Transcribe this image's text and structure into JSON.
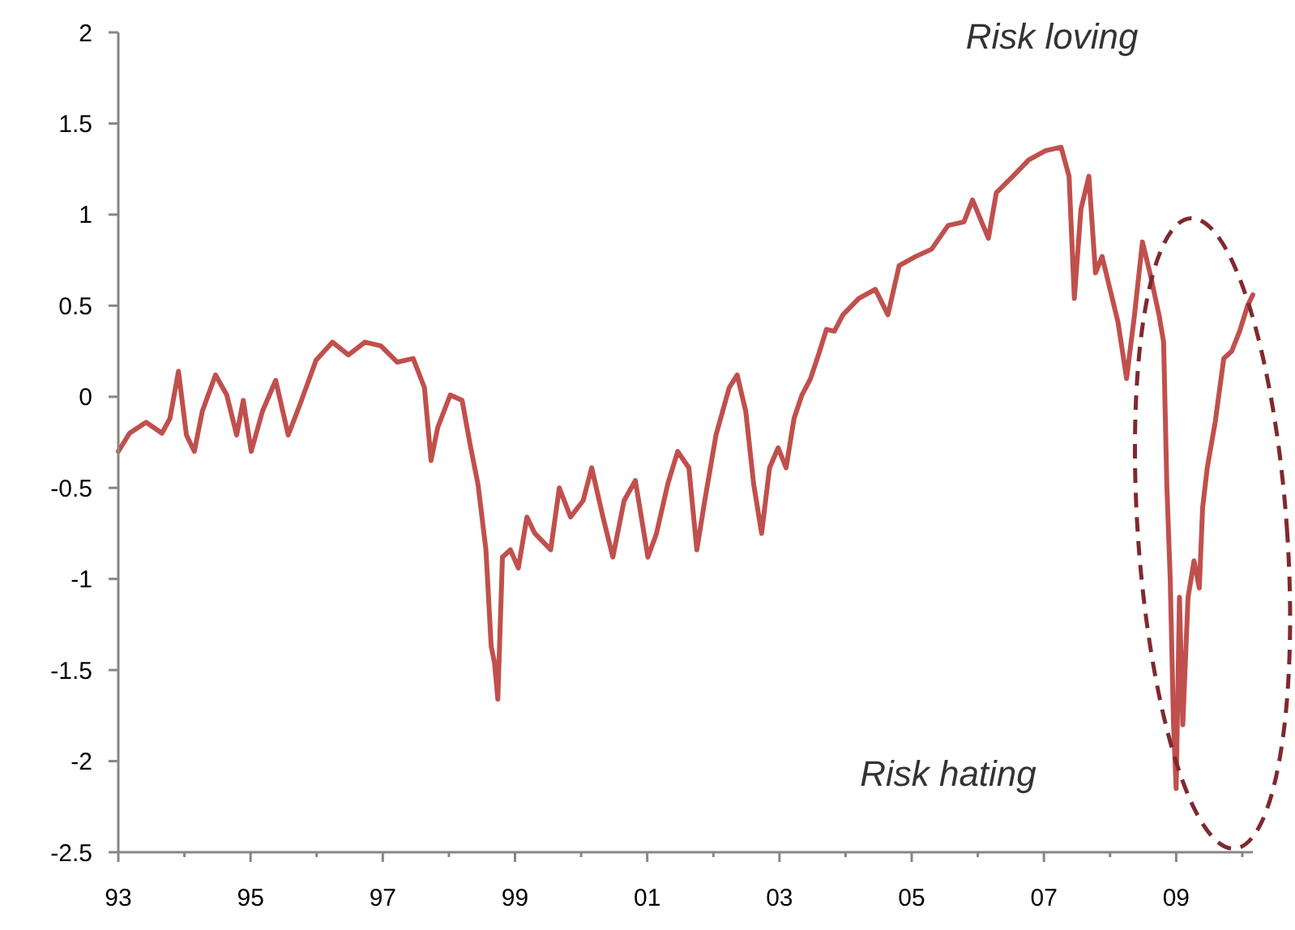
{
  "chart_data": {
    "type": "line",
    "x": [
      1993,
      1993.17,
      1993.42,
      1993.66,
      1993.78,
      1993.91,
      1994.03,
      1994.15,
      1994.27,
      1994.47,
      1994.64,
      1994.79,
      1994.89,
      1995.01,
      1995.18,
      1995.38,
      1995.57,
      1995.75,
      1995.99,
      1996.24,
      1996.48,
      1996.73,
      1996.97,
      1997.22,
      1997.46,
      1997.63,
      1997.73,
      1997.83,
      1998.02,
      1998.2,
      1998.32,
      1998.44,
      1998.56,
      1998.64,
      1998.69,
      1998.74,
      1998.81,
      1998.93,
      1999.05,
      1999.18,
      1999.3,
      1999.54,
      1999.67,
      1999.84,
      2000.03,
      2000.16,
      2000.33,
      2000.48,
      2000.65,
      2000.82,
      2001.01,
      2001.14,
      2001.31,
      2001.46,
      2001.63,
      2001.75,
      2001.87,
      2002.04,
      2002.24,
      2002.36,
      2002.49,
      2002.61,
      2002.73,
      2002.85,
      2002.98,
      2003.1,
      2003.22,
      2003.34,
      2003.47,
      2003.59,
      2003.71,
      2003.83,
      2003.96,
      2004.2,
      2004.45,
      2004.64,
      2004.81,
      2005.06,
      2005.3,
      2005.55,
      2005.79,
      2005.92,
      2006.16,
      2006.28,
      2006.53,
      2006.77,
      2007.02,
      2007.26,
      2007.38,
      2007.46,
      2007.56,
      2007.68,
      2007.78,
      2007.88,
      2008,
      2008.12,
      2008.25,
      2008.37,
      2008.49,
      2008.61,
      2008.74,
      2008.81,
      2008.86,
      2008.91,
      2008.96,
      2009,
      2009.05,
      2009.1,
      2009.18,
      2009.27,
      2009.35,
      2009.4,
      2009.47,
      2009.59,
      2009.72,
      2009.84,
      2009.96,
      2010.08,
      2010.16
    ],
    "series": [
      {
        "color": "#c0504d",
        "values": [
          -0.3,
          -0.2,
          -0.14,
          -0.2,
          -0.12,
          0.14,
          -0.21,
          -0.3,
          -0.08,
          0.12,
          0.01,
          -0.21,
          -0.02,
          -0.3,
          -0.08,
          0.09,
          -0.21,
          -0.04,
          0.2,
          0.3,
          0.23,
          0.3,
          0.28,
          0.19,
          0.21,
          0.05,
          -0.35,
          -0.17,
          0.01,
          -0.02,
          -0.26,
          -0.48,
          -0.84,
          -1.37,
          -1.46,
          -1.66,
          -0.88,
          -0.84,
          -0.94,
          -0.66,
          -0.75,
          -0.84,
          -0.5,
          -0.66,
          -0.57,
          -0.39,
          -0.66,
          -0.88,
          -0.57,
          -0.46,
          -0.88,
          -0.75,
          -0.48,
          -0.3,
          -0.39,
          -0.84,
          -0.57,
          -0.21,
          0.05,
          0.12,
          -0.08,
          -0.48,
          -0.75,
          -0.39,
          -0.28,
          -0.39,
          -0.12,
          0.01,
          0.1,
          0.23,
          0.37,
          0.36,
          0.45,
          0.54,
          0.59,
          0.45,
          0.72,
          0.77,
          0.81,
          0.94,
          0.96,
          1.08,
          0.87,
          1.12,
          1.21,
          1.3,
          1.35,
          1.37,
          1.21,
          0.54,
          1.03,
          1.21,
          0.68,
          0.77,
          0.59,
          0.41,
          0.1,
          0.45,
          0.85,
          0.67,
          0.45,
          0.3,
          -0.5,
          -1.0,
          -1.8,
          -2.15,
          -1.1,
          -1.8,
          -1.1,
          -0.9,
          -1.05,
          -0.61,
          -0.39,
          -0.14,
          0.21,
          0.25,
          0.36,
          0.5,
          0.56
        ]
      }
    ],
    "xlim": [
      1993,
      2010.16
    ],
    "xticks": [
      {
        "value": 1993,
        "label": "93"
      },
      {
        "value": 1994,
        "label": null
      },
      {
        "value": 1995,
        "label": "95"
      },
      {
        "value": 1996,
        "label": null
      },
      {
        "value": 1997,
        "label": "97"
      },
      {
        "value": 1998,
        "label": null
      },
      {
        "value": 1999,
        "label": "99"
      },
      {
        "value": 2000,
        "label": null
      },
      {
        "value": 2001,
        "label": "01"
      },
      {
        "value": 2002,
        "label": null
      },
      {
        "value": 2003,
        "label": "03"
      },
      {
        "value": 2004,
        "label": null
      },
      {
        "value": 2005,
        "label": "05"
      },
      {
        "value": 2006,
        "label": null
      },
      {
        "value": 2007,
        "label": "07"
      },
      {
        "value": 2008,
        "label": null
      },
      {
        "value": 2009,
        "label": "09"
      },
      {
        "value": 2010,
        "label": null
      }
    ],
    "ylim": [
      -2.5,
      2
    ],
    "yticks": [
      -2.5,
      -2,
      -1.5,
      -1,
      -0.5,
      0,
      0.5,
      1,
      1.5,
      2
    ],
    "annotations": [
      "Risk loving",
      "Risk hating"
    ]
  }
}
